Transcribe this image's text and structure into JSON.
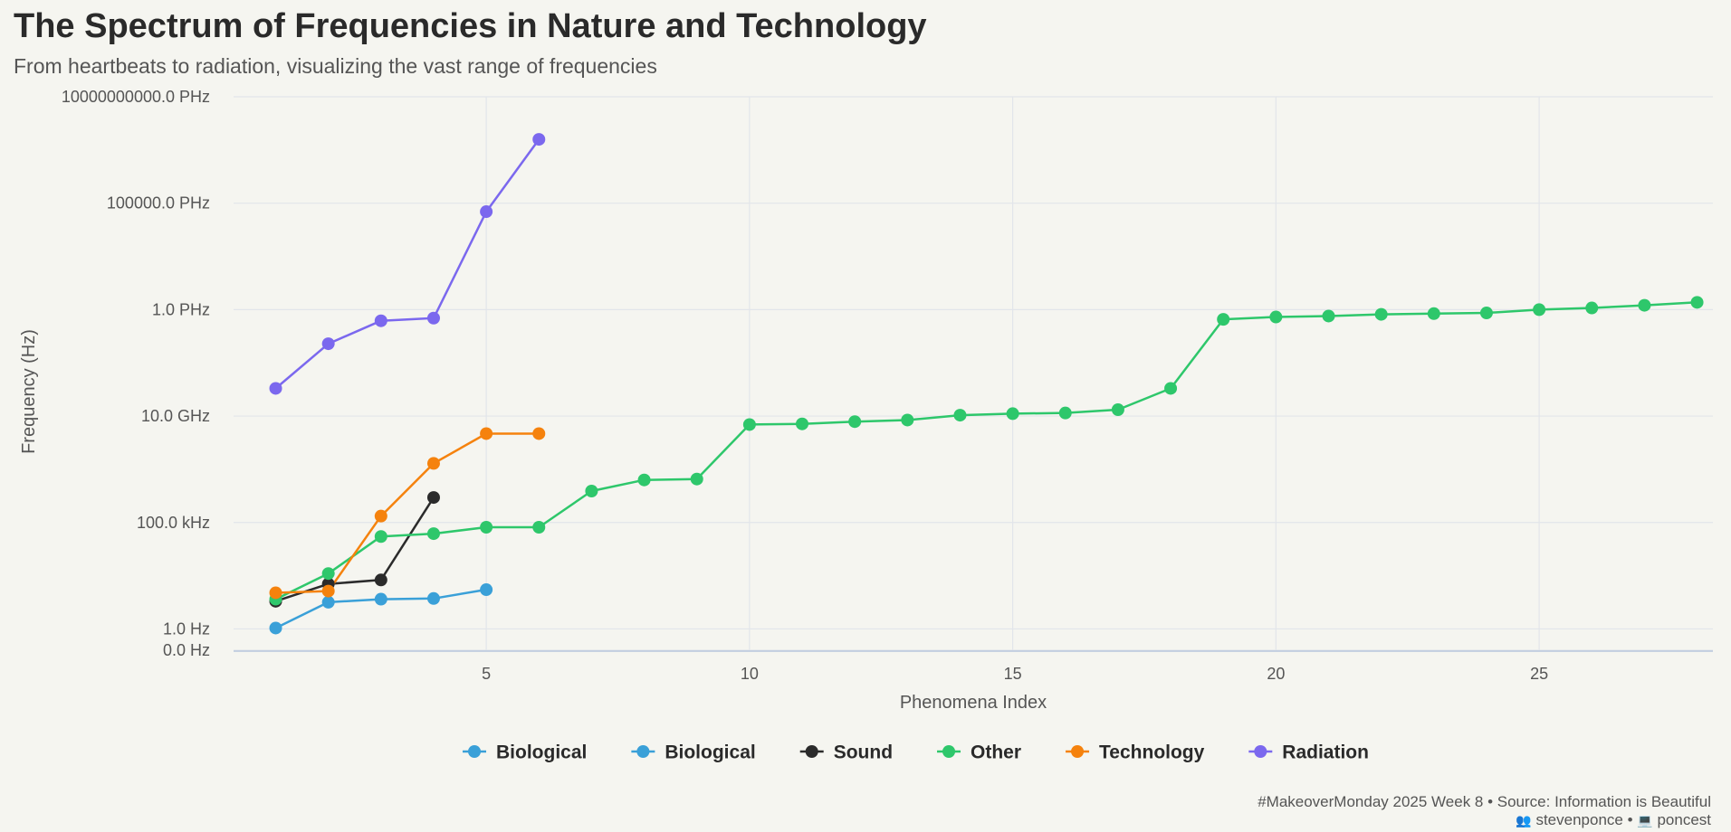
{
  "title": "The Spectrum of Frequencies in Nature and Technology",
  "subtitle": "From heartbeats to radiation, visualizing the vast range of frequencies",
  "caption": {
    "line1": "#MakeoverMonday 2025 Week 8 • Source: Information is Beautiful",
    "author": "stevenponce",
    "separator": "•",
    "handle": "poncest",
    "author_icon": "people-icon",
    "handle_icon": "laptop-icon"
  },
  "chart_data": {
    "type": "line",
    "xlabel": "Phenomena Index",
    "ylabel": "Frequency (Hz)",
    "y_scale": "log",
    "grid": true,
    "legend_placement": "bottom",
    "x_ticks": [
      5,
      10,
      15,
      20,
      25
    ],
    "xlim": [
      0.2,
      28.3
    ],
    "y_ticks": [
      {
        "value": 0.1,
        "label": "0.0 Hz"
      },
      {
        "value": 1,
        "label": "1.0 Hz"
      },
      {
        "value": 100000,
        "label": "100.0 kHz"
      },
      {
        "value": 10000000000,
        "label": "10.0 GHz"
      },
      {
        "value": 1000000000000000,
        "label": "1.0 PHz"
      },
      {
        "value": 100000000000000000000,
        "label": "100000.0 PHz"
      },
      {
        "value": 10000000000000000000000000,
        "label": "10000000000.0 PHz"
      }
    ],
    "series": [
      {
        "name": "Biological",
        "color": "#3aa0d8",
        "x": [
          1,
          2,
          3,
          4,
          5
        ],
        "y": [
          1.1,
          18,
          25,
          27,
          70
        ]
      },
      {
        "name": "Biological",
        "color": "#3aa0d8",
        "x": [],
        "y": []
      },
      {
        "name": "Sound",
        "color": "#2b2b2b",
        "x": [
          1,
          2,
          3,
          4
        ],
        "y": [
          20,
          130,
          200,
          1500000
        ]
      },
      {
        "name": "Other",
        "color": "#2ec76b",
        "x": [
          1,
          2,
          3,
          4,
          5,
          6,
          7,
          8,
          9,
          10,
          11,
          12,
          13,
          14,
          15,
          16,
          17,
          18,
          19,
          20,
          21,
          22,
          23,
          24,
          25,
          26,
          27,
          28
        ],
        "y": [
          25,
          400,
          22000,
          30000,
          60000,
          60000,
          3000000,
          10000000,
          11000000,
          4000000000.0,
          4300000000.0,
          5500000000.0,
          6500000000.0,
          11000000000.0,
          13000000000.0,
          14000000000.0,
          20000000000.0,
          200000000000.0,
          350000000000000.0,
          450000000000000.0,
          500000000000000.0,
          600000000000000.0,
          650000000000000.0,
          700000000000000.0,
          1000000000000000.0,
          1200000000000000.0,
          1600000000000000.0,
          2200000000000000.0
        ]
      },
      {
        "name": "Technology",
        "color": "#f5820d",
        "x": [
          1,
          2,
          3,
          4,
          5,
          6
        ],
        "y": [
          50,
          60,
          200000,
          60000000,
          1500000000.0,
          1500000000.0
        ]
      },
      {
        "name": "Radiation",
        "color": "#7b68ee",
        "x": [
          1,
          2,
          3,
          4,
          5,
          6
        ],
        "y": [
          200000000000.0,
          25000000000000.0,
          300000000000000.0,
          400000000000000.0,
          4e+19,
          1e+23
        ]
      }
    ]
  }
}
